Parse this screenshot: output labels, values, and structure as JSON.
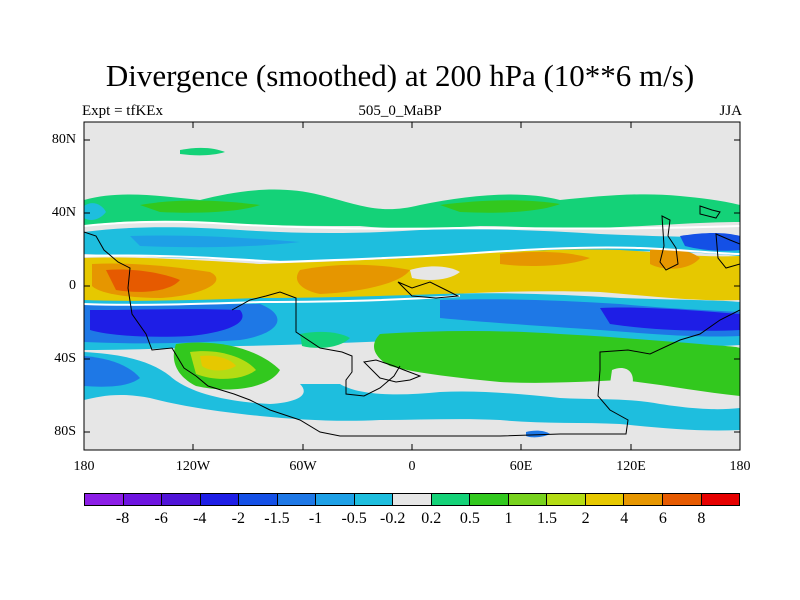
{
  "title": "Divergence (smoothed) at 200 hPa (10**6 m/s)",
  "subtitle_left": "Expt = tfKEx",
  "subtitle_center": "505_0_MaBP",
  "subtitle_right": "JJA",
  "map": {
    "lat_ticks": [
      "80N",
      "40N",
      "0",
      "40S",
      "80S"
    ],
    "lon_ticks": [
      "180",
      "120W",
      "60W",
      "0",
      "60E",
      "120E",
      "180"
    ],
    "background_color": "#e6e6e6"
  },
  "colorbar": {
    "colors": [
      "#8c1ee6",
      "#6e14e0",
      "#5014d8",
      "#1e1ee6",
      "#1450e6",
      "#1e78e6",
      "#1ea0e6",
      "#1ebede",
      "#e6e6e6",
      "#14d278",
      "#32c81e",
      "#78d21e",
      "#b4dc14",
      "#e6c800",
      "#e69600",
      "#e65a00",
      "#e60000"
    ],
    "labels": [
      "-8",
      "-6",
      "-4",
      "-2",
      "-1.5",
      "-1",
      "-0.5",
      "-0.2",
      "0.2",
      "0.5",
      "1",
      "1.5",
      "2",
      "4",
      "6",
      "8"
    ]
  }
}
